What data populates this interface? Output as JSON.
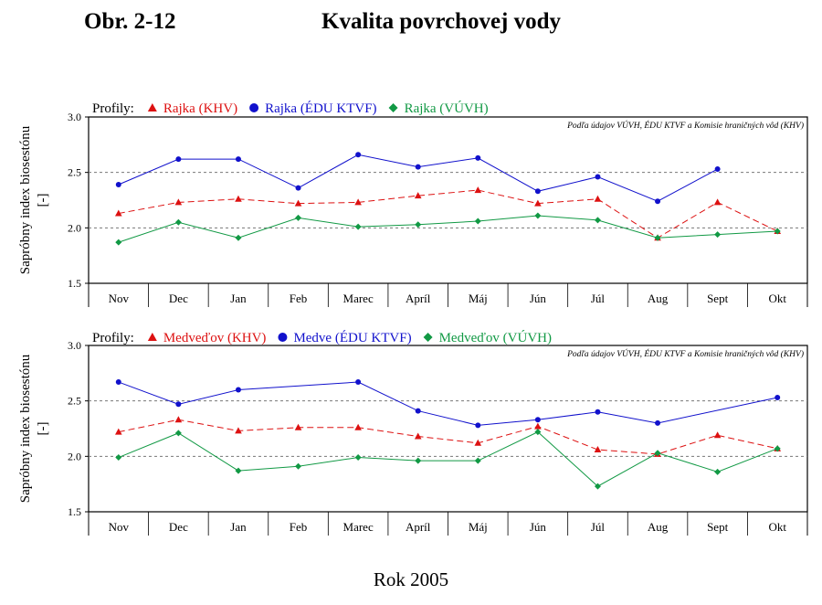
{
  "header": {
    "figure_label": "Obr. 2-12",
    "title": "Kvalita povrchovej vody"
  },
  "footer": {
    "xlabel": "Rok 2005"
  },
  "colors": {
    "khv": "#dd1111",
    "edu": "#1111cc",
    "vuvh": "#119944",
    "ref_line": "#777777"
  },
  "chart_data": [
    {
      "type": "line",
      "legend_prefix": "Profily:",
      "note": "Podľa údajov VÚVH, ÉDU KTVF a Komisie hraničných vôd (KHV)",
      "ylabel": "Sapróbny index biosestónu",
      "yunit": "[-]",
      "ylim": [
        1.5,
        3.0
      ],
      "yticks": [
        "3.0",
        "2.5",
        "2.0",
        "1.5"
      ],
      "ref_lines": [
        2.5,
        2.0
      ],
      "categories": [
        "Nov",
        "Dec",
        "Jan",
        "Feb",
        "Marec",
        "Apríl",
        "Máj",
        "Jún",
        "Júl",
        "Aug",
        "Sept",
        "Okt"
      ],
      "series": [
        {
          "name": "Rajka (KHV)",
          "key": "khv",
          "marker": "triangle",
          "dash": true,
          "values": [
            2.13,
            2.23,
            2.26,
            2.22,
            2.23,
            2.29,
            2.34,
            2.22,
            2.26,
            1.91,
            2.23,
            1.97
          ]
        },
        {
          "name": "Rajka (ÉDU KTVF)",
          "key": "edu",
          "marker": "circle",
          "dash": false,
          "values": [
            2.39,
            2.62,
            2.62,
            2.36,
            2.66,
            2.55,
            2.63,
            2.33,
            2.46,
            2.24,
            2.53,
            null
          ]
        },
        {
          "name": "Rajka (VÚVH)",
          "key": "vuvh",
          "marker": "diamond",
          "dash": false,
          "values": [
            1.87,
            2.05,
            1.91,
            2.09,
            2.01,
            2.03,
            2.06,
            2.11,
            2.07,
            1.91,
            1.94,
            1.97
          ]
        }
      ]
    },
    {
      "type": "line",
      "legend_prefix": "Profily:",
      "note": "Podľa údajov VÚVH, ÉDU KTVF a Komisie hraničných vôd (KHV)",
      "ylabel": "Sapróbny index biosestónu",
      "yunit": "[-]",
      "ylim": [
        1.5,
        3.0
      ],
      "yticks": [
        "3.0",
        "2.5",
        "2.0",
        "1.5"
      ],
      "ref_lines": [
        2.5,
        2.0
      ],
      "categories": [
        "Nov",
        "Dec",
        "Jan",
        "Feb",
        "Marec",
        "Apríl",
        "Máj",
        "Jún",
        "Júl",
        "Aug",
        "Sept",
        "Okt"
      ],
      "series": [
        {
          "name": "Medveďov (KHV)",
          "key": "khv",
          "marker": "triangle",
          "dash": true,
          "values": [
            2.22,
            2.33,
            2.23,
            2.26,
            2.26,
            2.18,
            2.12,
            2.27,
            2.06,
            2.02,
            2.19,
            2.07
          ]
        },
        {
          "name": "Medve (ÉDU KTVF)",
          "key": "edu",
          "marker": "circle",
          "dash": false,
          "values": [
            2.67,
            2.47,
            2.6,
            null,
            2.67,
            2.41,
            2.28,
            2.33,
            2.4,
            2.3,
            null,
            2.53
          ]
        },
        {
          "name": "Medveďov (VÚVH)",
          "key": "vuvh",
          "marker": "diamond",
          "dash": false,
          "values": [
            1.99,
            2.21,
            1.87,
            1.91,
            1.99,
            1.96,
            1.96,
            2.22,
            1.73,
            2.03,
            1.86,
            2.07
          ]
        }
      ]
    }
  ]
}
